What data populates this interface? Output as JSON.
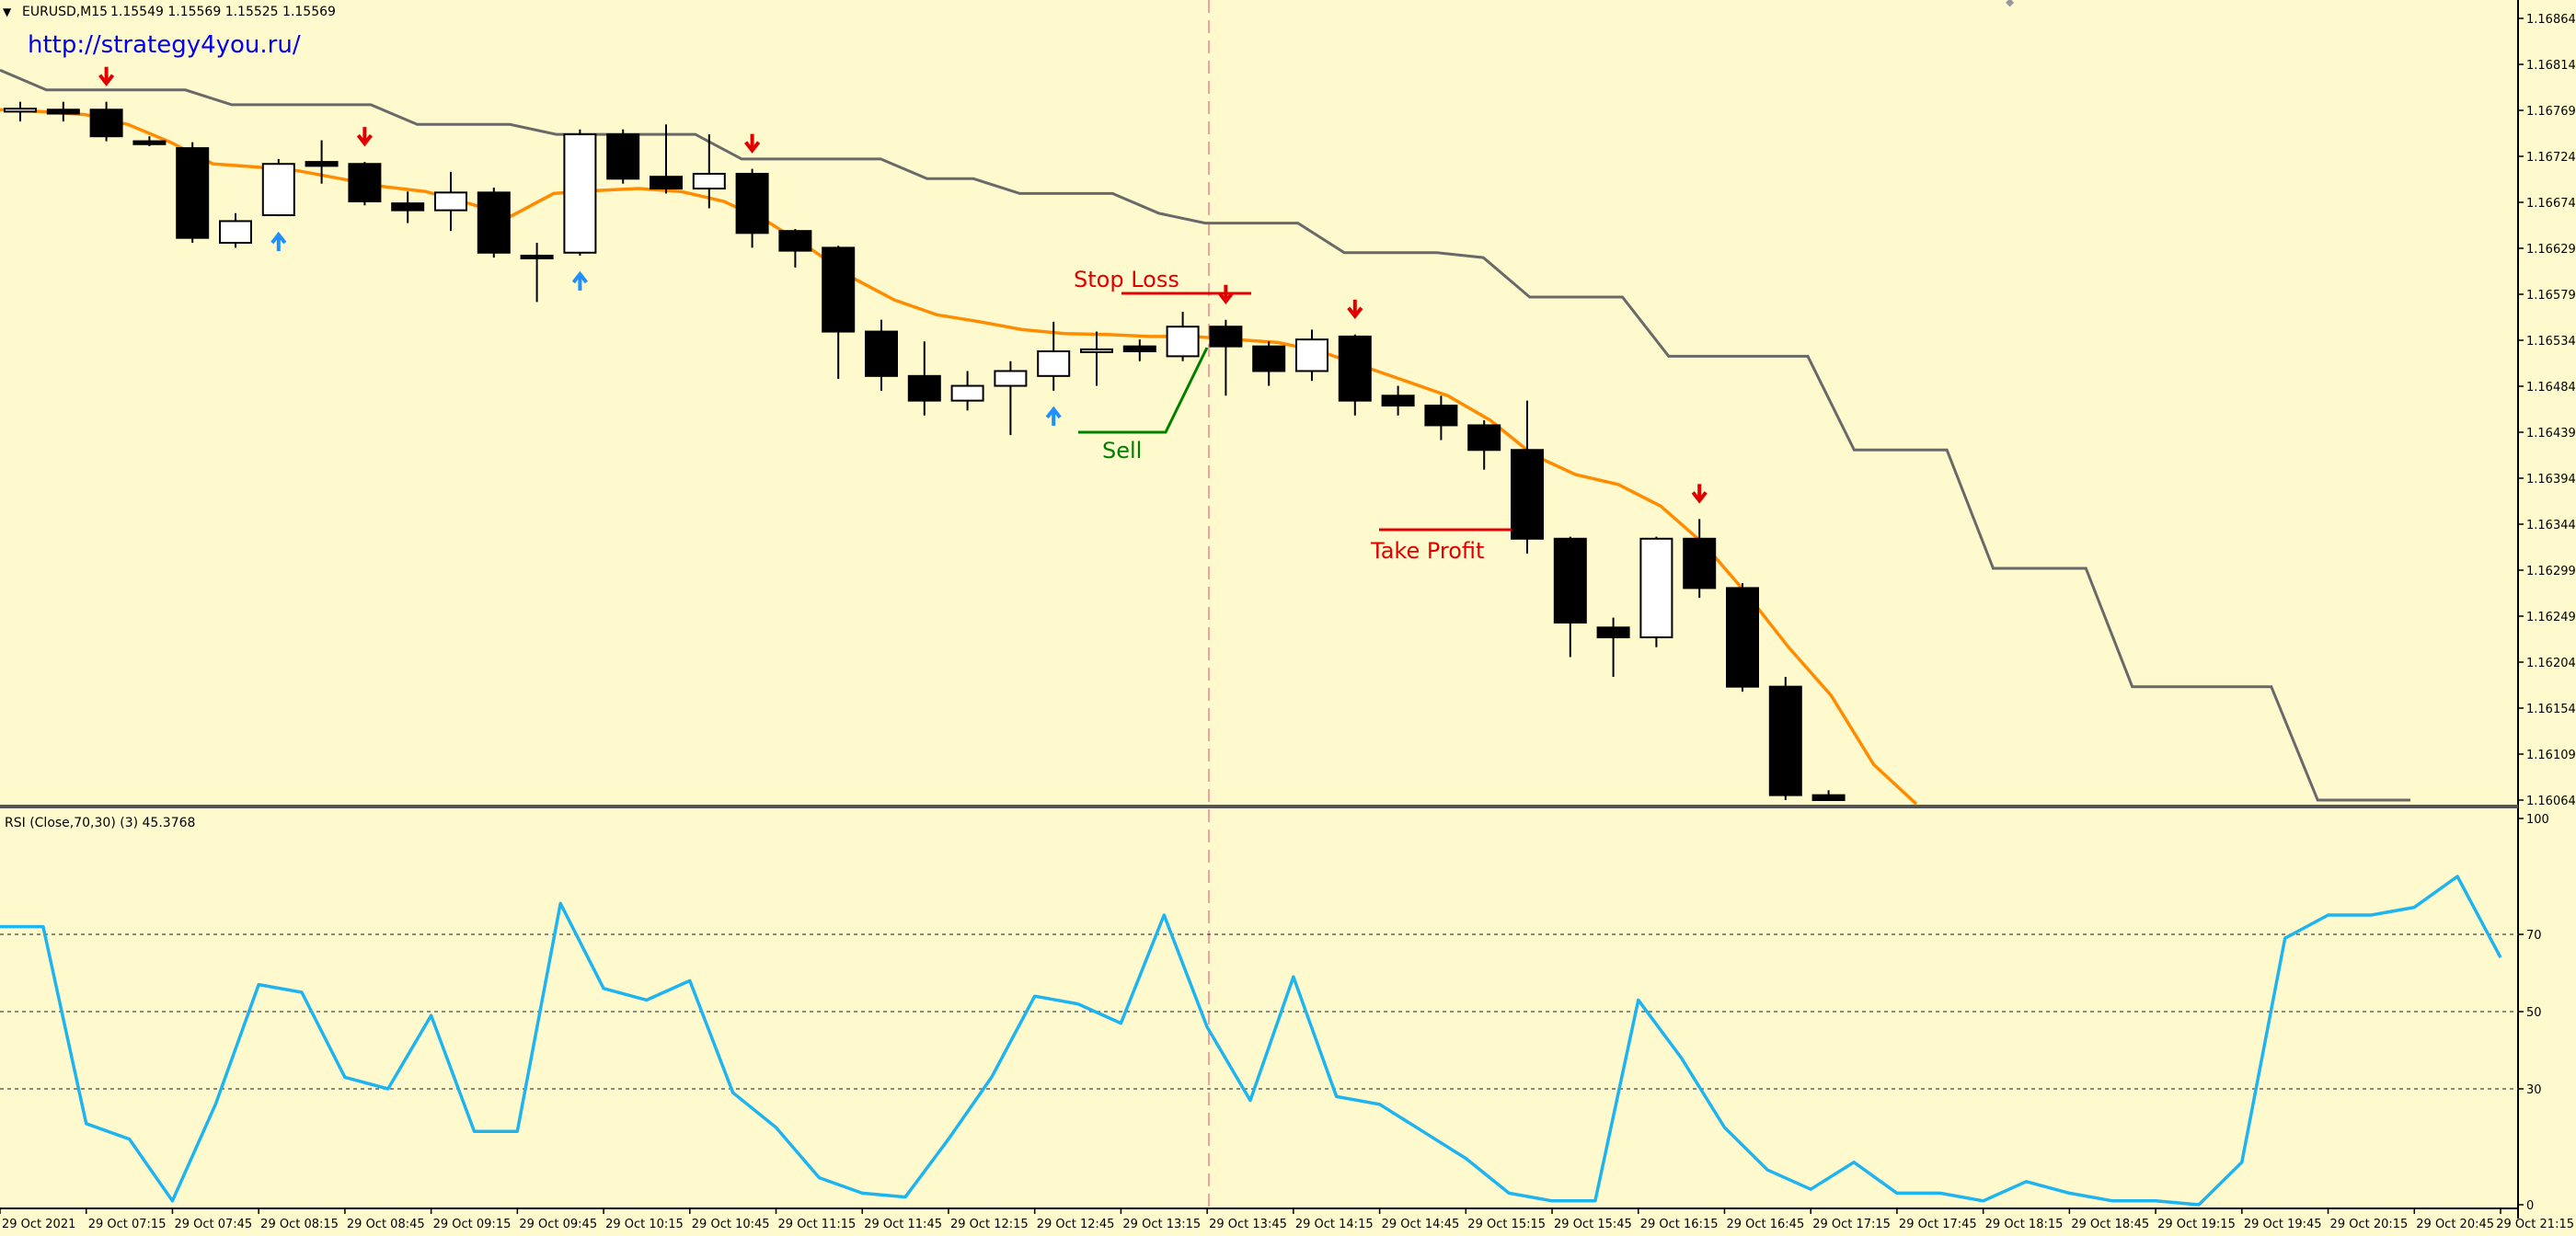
{
  "header": {
    "symbol_label": "EURUSD,M15",
    "ohlc_label": "1.15549 1.15569 1.15525 1.15569",
    "url": "http://strategy4you.ru/"
  },
  "colors": {
    "background": "#FFFACD",
    "candle_bull": "#FFFFFF",
    "candle_bear": "#000000",
    "ma": "#FF8C00",
    "channel": "#696969",
    "rsi": "#1EB4F0",
    "sell_arrow": "#E00000",
    "buy_arrow": "#1E90FF",
    "stop_loss": "#E00000",
    "take_profit": "#E00000",
    "sell_line": "#008000"
  },
  "annotations": {
    "stop_loss": "Stop Loss",
    "take_profit": "Take Profit",
    "sell": "Sell"
  },
  "rsi_panel": {
    "label": "RSI (Close,70,30) (3) 45.3768",
    "levels": [
      70,
      50,
      30
    ],
    "axis_labels": [
      "100",
      "70",
      "50",
      "30",
      "0"
    ]
  },
  "chart_data": {
    "type": "candlestick",
    "y_axis_labels": [
      "1.16864",
      "1.16814",
      "1.16769",
      "1.16724",
      "1.16674",
      "1.16629",
      "1.16579",
      "1.16534",
      "1.16484",
      "1.16439",
      "1.16394",
      "1.16344",
      "1.16299",
      "1.16249",
      "1.16204",
      "1.16154",
      "1.16109",
      "1.16064"
    ],
    "x_axis_labels": [
      "29 Oct 2021",
      "29 Oct 07:15",
      "29 Oct 07:45",
      "29 Oct 08:15",
      "29 Oct 08:45",
      "29 Oct 09:15",
      "29 Oct 09:45",
      "29 Oct 10:15",
      "29 Oct 10:45",
      "29 Oct 11:15",
      "29 Oct 11:45",
      "29 Oct 12:15",
      "29 Oct 12:45",
      "29 Oct 13:15",
      "29 Oct 13:45",
      "29 Oct 14:15",
      "29 Oct 14:45",
      "29 Oct 15:15",
      "29 Oct 15:45",
      "29 Oct 16:15",
      "29 Oct 16:45",
      "29 Oct 17:15",
      "29 Oct 17:45",
      "29 Oct 18:15",
      "29 Oct 18:45",
      "29 Oct 19:15",
      "29 Oct 19:45",
      "29 Oct 20:15",
      "29 Oct 20:45",
      "29 Oct 21:15"
    ],
    "price_range": [
      1.16064,
      1.16864
    ],
    "candles": [
      {
        "o": 1.16762,
        "h": 1.16772,
        "l": 1.16752,
        "c": 1.16765
      },
      {
        "o": 1.16764,
        "h": 1.16772,
        "l": 1.16752,
        "c": 1.1676
      },
      {
        "o": 1.16764,
        "h": 1.16772,
        "l": 1.16732,
        "c": 1.16737
      },
      {
        "o": 1.16732,
        "h": 1.16737,
        "l": 1.16727,
        "c": 1.16729
      },
      {
        "o": 1.16725,
        "h": 1.16731,
        "l": 1.16629,
        "c": 1.16634
      },
      {
        "o": 1.16629,
        "h": 1.16659,
        "l": 1.16624,
        "c": 1.16651
      },
      {
        "o": 1.16657,
        "h": 1.16714,
        "l": 1.16656,
        "c": 1.16709
      },
      {
        "o": 1.16711,
        "h": 1.16733,
        "l": 1.16689,
        "c": 1.16707
      },
      {
        "o": 1.16709,
        "h": 1.16711,
        "l": 1.16667,
        "c": 1.16671
      },
      {
        "o": 1.16669,
        "h": 1.16681,
        "l": 1.16649,
        "c": 1.16662
      },
      {
        "o": 1.16662,
        "h": 1.16701,
        "l": 1.16641,
        "c": 1.1668
      },
      {
        "o": 1.1668,
        "h": 1.16685,
        "l": 1.16614,
        "c": 1.16619
      },
      {
        "o": 1.16616,
        "h": 1.16629,
        "l": 1.16569,
        "c": 1.16614
      },
      {
        "o": 1.16619,
        "h": 1.16744,
        "l": 1.16616,
        "c": 1.16739
      },
      {
        "o": 1.16739,
        "h": 1.16744,
        "l": 1.16689,
        "c": 1.16694
      },
      {
        "o": 1.16696,
        "h": 1.16749,
        "l": 1.16679,
        "c": 1.16684
      },
      {
        "o": 1.16684,
        "h": 1.16739,
        "l": 1.16664,
        "c": 1.16699
      },
      {
        "o": 1.16699,
        "h": 1.16704,
        "l": 1.16624,
        "c": 1.16639
      },
      {
        "o": 1.16641,
        "h": 1.16643,
        "l": 1.16604,
        "c": 1.16621
      },
      {
        "o": 1.16624,
        "h": 1.16626,
        "l": 1.16491,
        "c": 1.16539
      },
      {
        "o": 1.16539,
        "h": 1.16551,
        "l": 1.16479,
        "c": 1.16494
      },
      {
        "o": 1.16494,
        "h": 1.16529,
        "l": 1.16454,
        "c": 1.16469
      },
      {
        "o": 1.16469,
        "h": 1.16499,
        "l": 1.16459,
        "c": 1.16484
      },
      {
        "o": 1.16484,
        "h": 1.16509,
        "l": 1.16434,
        "c": 1.16499
      },
      {
        "o": 1.16494,
        "h": 1.16549,
        "l": 1.16479,
        "c": 1.16519
      },
      {
        "o": 1.16519,
        "h": 1.16539,
        "l": 1.16484,
        "c": 1.16521
      },
      {
        "o": 1.16524,
        "h": 1.16531,
        "l": 1.16509,
        "c": 1.16519
      },
      {
        "o": 1.16514,
        "h": 1.16559,
        "l": 1.16509,
        "c": 1.16544
      },
      {
        "o": 1.16544,
        "h": 1.16551,
        "l": 1.16474,
        "c": 1.16524
      },
      {
        "o": 1.16524,
        "h": 1.16529,
        "l": 1.16484,
        "c": 1.16499
      },
      {
        "o": 1.16499,
        "h": 1.16541,
        "l": 1.16489,
        "c": 1.16531
      },
      {
        "o": 1.16534,
        "h": 1.16536,
        "l": 1.16454,
        "c": 1.16469
      },
      {
        "o": 1.16474,
        "h": 1.16484,
        "l": 1.16454,
        "c": 1.16464
      },
      {
        "o": 1.16464,
        "h": 1.16474,
        "l": 1.16429,
        "c": 1.16444
      },
      {
        "o": 1.16444,
        "h": 1.16449,
        "l": 1.16399,
        "c": 1.16419
      },
      {
        "o": 1.16419,
        "h": 1.16469,
        "l": 1.16314,
        "c": 1.16329
      },
      {
        "o": 1.16329,
        "h": 1.16331,
        "l": 1.16209,
        "c": 1.16244
      },
      {
        "o": 1.16239,
        "h": 1.16249,
        "l": 1.16189,
        "c": 1.16229
      },
      {
        "o": 1.16229,
        "h": 1.16331,
        "l": 1.16219,
        "c": 1.16329
      },
      {
        "o": 1.16329,
        "h": 1.16349,
        "l": 1.16269,
        "c": 1.16279
      },
      {
        "o": 1.16279,
        "h": 1.16284,
        "l": 1.16174,
        "c": 1.16179
      },
      {
        "o": 1.16179,
        "h": 1.16189,
        "l": 1.16064,
        "c": 1.16069
      },
      {
        "o": 1.16069,
        "h": 1.16074,
        "l": 1.16064,
        "c": 1.16064
      }
    ],
    "ma_values": [
      1.16764,
      1.16762,
      1.16759,
      1.16749,
      1.16731,
      1.16709,
      1.16706,
      1.16702,
      1.16694,
      1.16686,
      1.16681,
      1.16669,
      1.16656,
      1.16679,
      1.16682,
      1.16684,
      1.16681,
      1.16671,
      1.16651,
      1.16624,
      1.16594,
      1.16571,
      1.16556,
      1.16549,
      1.16541,
      1.16537,
      1.16536,
      1.16534,
      1.16534,
      1.16531,
      1.16528,
      1.16519,
      1.16504,
      1.16489,
      1.16474,
      1.16449,
      1.16414,
      1.16394,
      1.16384,
      1.16362,
      1.16324,
      1.16274,
      1.16219,
      1.1617,
      1.161,
      1.1606
    ],
    "channel_values": [
      1.16804,
      1.16784,
      1.16784,
      1.16784,
      1.16784,
      1.16769,
      1.16769,
      1.16769,
      1.16769,
      1.16749,
      1.16749,
      1.16749,
      1.16739,
      1.16739,
      1.16739,
      1.16739,
      1.16714,
      1.16714,
      1.16714,
      1.16714,
      1.16694,
      1.16694,
      1.16679,
      1.16679,
      1.16679,
      1.16659,
      1.16649,
      1.16649,
      1.16649,
      1.16619,
      1.16619,
      1.16619,
      1.16614,
      1.16574,
      1.16574,
      1.16574,
      1.16514,
      1.16514,
      1.16514,
      1.16514,
      1.16419,
      1.16419,
      1.16419,
      1.16299,
      1.16299,
      1.16299,
      1.16179,
      1.16179,
      1.16179,
      1.16179,
      1.16064,
      1.16064,
      1.16064
    ],
    "sell_arrows": [
      2,
      8,
      17,
      28,
      31,
      39
    ],
    "buy_arrows": [
      6,
      13,
      24
    ],
    "rsi_values": [
      72,
      72,
      21,
      17,
      1,
      26,
      57,
      55,
      33,
      30,
      49,
      19,
      19,
      78,
      56,
      53,
      58,
      29,
      20,
      7,
      3,
      2,
      17,
      33,
      54,
      52,
      47,
      75,
      46,
      27,
      59,
      28,
      26,
      19,
      12,
      3,
      1,
      1,
      53,
      38,
      20,
      9,
      4,
      11,
      3,
      3,
      1,
      6,
      3,
      1,
      1,
      0,
      11,
      69,
      75,
      75,
      77,
      85,
      64
    ]
  }
}
